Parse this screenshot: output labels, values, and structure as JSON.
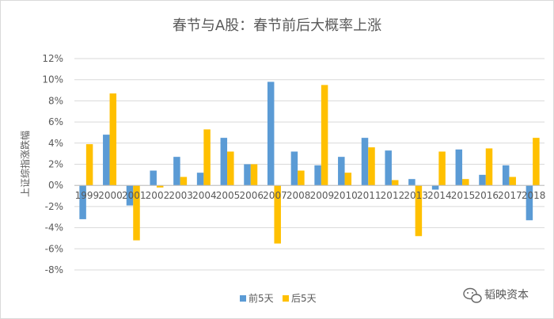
{
  "chart_data": {
    "type": "bar",
    "title": "春节与A股：春节前后大概率上涨",
    "xlabel": "",
    "ylabel": "上证综指涨跌幅",
    "categories": [
      "1999",
      "2000",
      "2001",
      "2002",
      "2003",
      "2004",
      "2005",
      "2006",
      "2007",
      "2008",
      "2009",
      "2010",
      "2011",
      "2012",
      "2013",
      "2014",
      "2015",
      "2016",
      "2017",
      "2018"
    ],
    "series": [
      {
        "name": "前5天",
        "color": "#5B9BD5",
        "values": [
          -3.2,
          4.8,
          -1.9,
          1.4,
          2.7,
          1.2,
          4.5,
          2.0,
          9.8,
          3.2,
          1.9,
          2.7,
          4.5,
          3.3,
          0.6,
          -0.4,
          3.4,
          1.0,
          1.9,
          -3.3
        ]
      },
      {
        "name": "后5天",
        "color": "#FFC000",
        "values": [
          3.9,
          8.7,
          -5.2,
          -0.2,
          0.8,
          5.3,
          3.2,
          2.0,
          -5.5,
          1.4,
          9.5,
          1.2,
          3.6,
          0.5,
          -4.8,
          3.2,
          0.6,
          3.5,
          0.8,
          4.5
        ]
      }
    ],
    "ylim": [
      -8,
      12
    ],
    "y_ticks": [
      "-8%",
      "-6%",
      "-4%",
      "-2%",
      "0%",
      "2%",
      "4%",
      "6%",
      "8%",
      "10%",
      "12%"
    ],
    "y_tick_values": [
      -8,
      -6,
      -4,
      -2,
      0,
      2,
      4,
      6,
      8,
      10,
      12
    ],
    "grid": true,
    "legend_position": "bottom"
  },
  "watermark": {
    "text": "韬映资本",
    "icon": "wechat-icon"
  }
}
